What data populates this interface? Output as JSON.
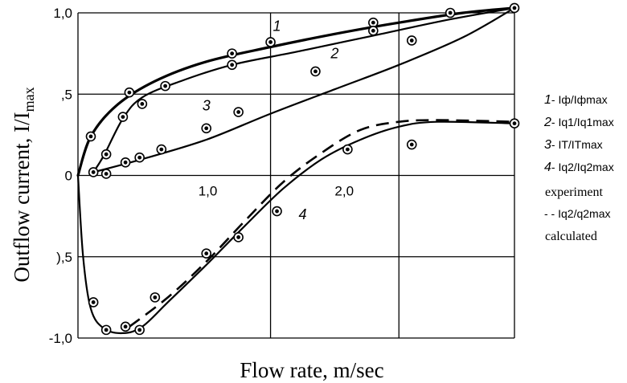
{
  "chart_data": {
    "type": "line",
    "xlabel": "Flow rate, m/sec",
    "ylabel": "Outflow current, I/I",
    "ylabel_sub": "max",
    "xlim": [
      0,
      3.2
    ],
    "ylim": [
      -1.0,
      1.0
    ],
    "x_ticks": [
      {
        "value": 1.0,
        "label": "1,0"
      },
      {
        "value": 2.0,
        "label": "2,0"
      }
    ],
    "y_ticks": [
      {
        "value": 1.0,
        "label": "1,0"
      },
      {
        "value": 0.5,
        "label": ",5"
      },
      {
        "value": 0,
        "label": "0"
      },
      {
        "value": -0.5,
        "label": "),5"
      },
      {
        "value": -1.0,
        "label": "-1,0"
      }
    ],
    "grid_x": [
      0,
      1.5,
      2.5,
      3.4
    ],
    "grid_y": [
      1.0,
      0.5,
      0,
      -0.5,
      -1.0
    ],
    "grid": true,
    "series": [
      {
        "id": "s1",
        "label": "1",
        "dashed": false,
        "stroke": 3.2,
        "line": [
          [
            0,
            0
          ],
          [
            0.1,
            0.24
          ],
          [
            0.3,
            0.43
          ],
          [
            0.6,
            0.58
          ],
          [
            1.0,
            0.7
          ],
          [
            1.5,
            0.79
          ],
          [
            2.0,
            0.87
          ],
          [
            2.5,
            0.94
          ],
          [
            3.0,
            1.0
          ],
          [
            3.4,
            1.03
          ]
        ],
        "points": [
          [
            0.1,
            0.24
          ],
          [
            0.4,
            0.51
          ],
          [
            1.2,
            0.75
          ],
          [
            1.5,
            0.82
          ],
          [
            2.3,
            0.94
          ],
          [
            2.9,
            1.0
          ],
          [
            3.4,
            1.03
          ]
        ]
      },
      {
        "id": "s2",
        "label": "2",
        "dashed": false,
        "stroke": 2.2,
        "line": [
          [
            0.12,
            0.02
          ],
          [
            0.2,
            0.12
          ],
          [
            0.35,
            0.35
          ],
          [
            0.5,
            0.48
          ],
          [
            0.8,
            0.58
          ],
          [
            1.2,
            0.68
          ],
          [
            1.7,
            0.76
          ],
          [
            2.3,
            0.86
          ],
          [
            2.9,
            0.96
          ],
          [
            3.4,
            1.03
          ]
        ],
        "points": [
          [
            0.22,
            0.13
          ],
          [
            0.35,
            0.36
          ],
          [
            0.5,
            0.44
          ],
          [
            0.68,
            0.55
          ],
          [
            1.2,
            0.68
          ],
          [
            2.3,
            0.89
          ]
        ]
      },
      {
        "id": "s3",
        "label": "3",
        "dashed": false,
        "stroke": 2.2,
        "line": [
          [
            0.12,
            0.02
          ],
          [
            0.5,
            0.1
          ],
          [
            1.0,
            0.22
          ],
          [
            1.5,
            0.38
          ],
          [
            2.0,
            0.53
          ],
          [
            2.5,
            0.68
          ],
          [
            3.0,
            0.85
          ],
          [
            3.4,
            1.03
          ]
        ],
        "points": [
          [
            0.12,
            0.02
          ],
          [
            0.22,
            0.01
          ],
          [
            0.37,
            0.08
          ],
          [
            0.48,
            0.11
          ],
          [
            0.65,
            0.16
          ],
          [
            1.0,
            0.29
          ],
          [
            1.25,
            0.39
          ],
          [
            1.85,
            0.64
          ],
          [
            2.6,
            0.83
          ]
        ]
      },
      {
        "id": "s4",
        "label": "4",
        "dashed": false,
        "stroke": 2.2,
        "line": [
          [
            0,
            0
          ],
          [
            0.04,
            -0.5
          ],
          [
            0.1,
            -0.82
          ],
          [
            0.2,
            -0.94
          ],
          [
            0.35,
            -0.97
          ],
          [
            0.5,
            -0.93
          ],
          [
            0.7,
            -0.78
          ],
          [
            1.0,
            -0.55
          ],
          [
            1.3,
            -0.31
          ],
          [
            1.6,
            -0.08
          ],
          [
            1.9,
            0.1
          ],
          [
            2.2,
            0.22
          ],
          [
            2.5,
            0.3
          ],
          [
            2.8,
            0.33
          ],
          [
            3.4,
            0.32
          ]
        ],
        "points": [
          [
            0.12,
            -0.78
          ],
          [
            0.22,
            -0.95
          ],
          [
            0.37,
            -0.93
          ],
          [
            0.48,
            -0.95
          ],
          [
            0.6,
            -0.75
          ],
          [
            1.0,
            -0.48
          ],
          [
            1.25,
            -0.38
          ],
          [
            1.55,
            -0.22
          ],
          [
            2.1,
            0.16
          ],
          [
            2.6,
            0.19
          ],
          [
            3.4,
            0.32
          ]
        ]
      },
      {
        "id": "s5",
        "label": "",
        "dashed": true,
        "stroke": 2.6,
        "line": [
          [
            0.4,
            -0.93
          ],
          [
            0.7,
            -0.75
          ],
          [
            1.0,
            -0.53
          ],
          [
            1.3,
            -0.28
          ],
          [
            1.6,
            -0.04
          ],
          [
            1.9,
            0.14
          ],
          [
            2.2,
            0.28
          ],
          [
            2.5,
            0.33
          ],
          [
            2.8,
            0.34
          ],
          [
            3.4,
            0.33
          ]
        ],
        "points": []
      }
    ],
    "curve_labels": [
      {
        "text": "1",
        "x": 1.55,
        "y": 0.89
      },
      {
        "text": "2",
        "x": 2.0,
        "y": 0.72
      },
      {
        "text": "3",
        "x": 1.0,
        "y": 0.4
      },
      {
        "text": "4",
        "x": 1.75,
        "y": -0.27
      }
    ],
    "legend": [
      {
        "num": "1",
        "text": "- Iф/Iфmax"
      },
      {
        "num": "2",
        "text": "- Iq1/Iq1max"
      },
      {
        "num": "3",
        "text": "- IT/ITmax"
      },
      {
        "num": "4",
        "text": "- Iq2/Iq2max"
      },
      {
        "num": "",
        "text": "experiment"
      },
      {
        "num": "",
        "text": "- - Iq2/q2max"
      },
      {
        "num": "",
        "text": "calculated"
      }
    ]
  }
}
